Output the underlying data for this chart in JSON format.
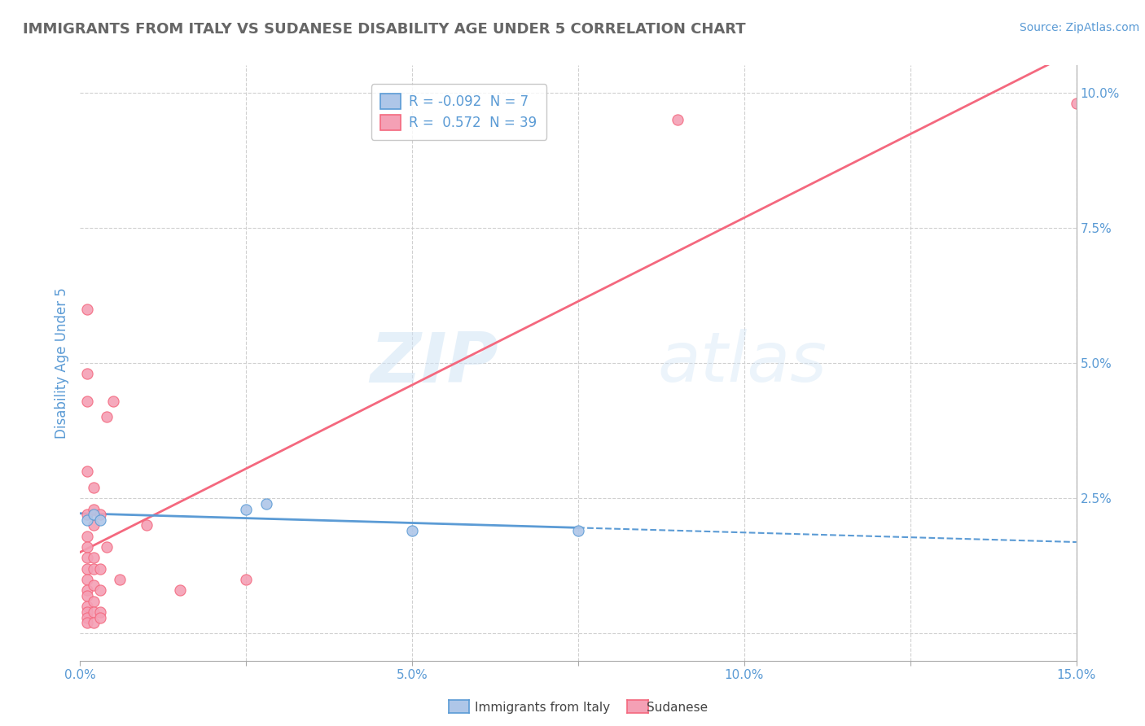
{
  "title": "IMMIGRANTS FROM ITALY VS SUDANESE DISABILITY AGE UNDER 5 CORRELATION CHART",
  "source": "Source: ZipAtlas.com",
  "ylabel": "Disability Age Under 5",
  "xlim": [
    0.0,
    0.15
  ],
  "ylim": [
    -0.005,
    0.105
  ],
  "legend_r_italy": "-0.092",
  "legend_n_italy": "7",
  "legend_r_sudanese": "0.572",
  "legend_n_sudanese": "39",
  "italy_color": "#aec6e8",
  "sudanese_color": "#f4a0b5",
  "italy_line_color": "#5b9bd5",
  "sudanese_line_color": "#f4687e",
  "italy_scatter": [
    [
      0.001,
      0.021
    ],
    [
      0.002,
      0.022
    ],
    [
      0.003,
      0.021
    ],
    [
      0.025,
      0.023
    ],
    [
      0.028,
      0.024
    ],
    [
      0.05,
      0.019
    ],
    [
      0.075,
      0.019
    ]
  ],
  "sudanese_scatter": [
    [
      0.001,
      0.06
    ],
    [
      0.001,
      0.048
    ],
    [
      0.001,
      0.043
    ],
    [
      0.001,
      0.03
    ],
    [
      0.001,
      0.022
    ],
    [
      0.001,
      0.018
    ],
    [
      0.001,
      0.016
    ],
    [
      0.001,
      0.014
    ],
    [
      0.001,
      0.012
    ],
    [
      0.001,
      0.01
    ],
    [
      0.001,
      0.008
    ],
    [
      0.001,
      0.007
    ],
    [
      0.001,
      0.005
    ],
    [
      0.001,
      0.004
    ],
    [
      0.001,
      0.003
    ],
    [
      0.001,
      0.002
    ],
    [
      0.002,
      0.027
    ],
    [
      0.002,
      0.023
    ],
    [
      0.002,
      0.02
    ],
    [
      0.002,
      0.014
    ],
    [
      0.002,
      0.012
    ],
    [
      0.002,
      0.009
    ],
    [
      0.002,
      0.006
    ],
    [
      0.002,
      0.004
    ],
    [
      0.002,
      0.002
    ],
    [
      0.003,
      0.022
    ],
    [
      0.003,
      0.012
    ],
    [
      0.003,
      0.008
    ],
    [
      0.003,
      0.004
    ],
    [
      0.003,
      0.003
    ],
    [
      0.004,
      0.04
    ],
    [
      0.004,
      0.016
    ],
    [
      0.005,
      0.043
    ],
    [
      0.006,
      0.01
    ],
    [
      0.01,
      0.02
    ],
    [
      0.015,
      0.008
    ],
    [
      0.025,
      0.01
    ],
    [
      0.09,
      0.095
    ],
    [
      0.15,
      0.098
    ]
  ],
  "italy_line_params": [
    0.021,
    -0.017
  ],
  "sudanese_line_params": [
    0.0,
    0.663
  ],
  "watermark_zip": "ZIP",
  "watermark_atlas": "atlas",
  "background_color": "#ffffff",
  "grid_color": "#d0d0d0",
  "title_color": "#666666",
  "axis_label_color": "#5b9bd5",
  "tick_label_color": "#5b9bd5"
}
